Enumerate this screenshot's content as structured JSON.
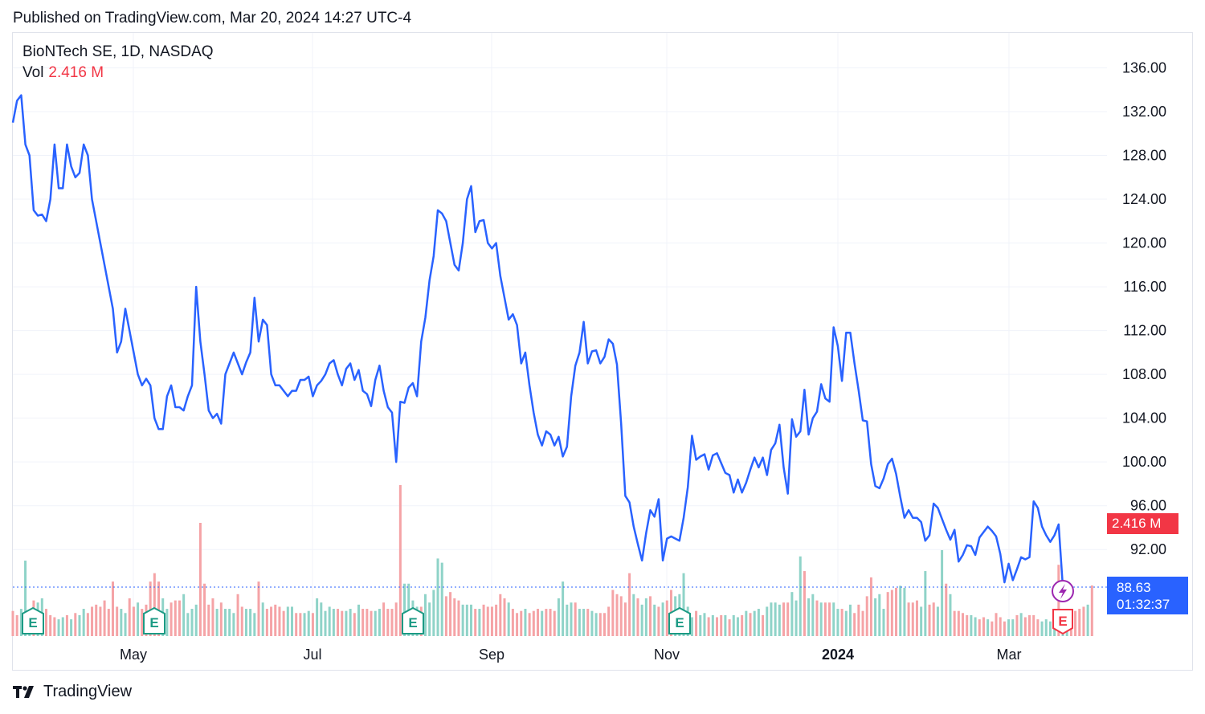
{
  "header": {
    "published": "Published on TradingView.com, Mar 20, 2024 14:27 UTC-4"
  },
  "legend": {
    "symbol": "BioNTech SE, 1D, NASDAQ",
    "vol_label": "Vol",
    "vol_value": "2.416 M"
  },
  "price_tag": {
    "value": "88.63",
    "countdown": "01:32:37"
  },
  "volume_tag": {
    "value": "2.416 M"
  },
  "footer": {
    "brand": "TradingView"
  },
  "colors": {
    "line": "#2962ff",
    "vol_up": "#8fd3c8",
    "vol_down": "#f5a3a6",
    "earnings": "#1b9a84",
    "earnings_next": "#f23645"
  },
  "chart_data": {
    "type": "line",
    "title": "BioNTech SE, 1D, NASDAQ",
    "x_range": [
      "2024-04-05",
      "2024-03-20"
    ],
    "ylim": [
      85,
      138
    ],
    "yticks": [
      "136.00",
      "132.00",
      "128.00",
      "124.00",
      "120.00",
      "116.00",
      "112.00",
      "108.00",
      "104.00",
      "100.00",
      "96.00",
      "92.00"
    ],
    "xticks": [
      "May",
      "Jul",
      "Sep",
      "Nov",
      "2024",
      "Mar"
    ],
    "series": [
      {
        "values": [
          131,
          133,
          133.5,
          129,
          128,
          123,
          122.5,
          122.6,
          122,
          124,
          129,
          125,
          125,
          129,
          127,
          126,
          126.4,
          129,
          128,
          124,
          122,
          120,
          118,
          116,
          114,
          110,
          111,
          114,
          112,
          110,
          108,
          107,
          107.6,
          107,
          104,
          103,
          103,
          106,
          107,
          105,
          105,
          104.7,
          106,
          107,
          116,
          111,
          108,
          104.7,
          104,
          104.4,
          103.5,
          108,
          109,
          110,
          109,
          108,
          109.1,
          110,
          115,
          111,
          113,
          112.5,
          108,
          107,
          107,
          106.5,
          106,
          106.5,
          106.5,
          107.5,
          107.5,
          107.8,
          106,
          107,
          107.4,
          108,
          109,
          109.3,
          108,
          107,
          108.5,
          109,
          107.5,
          108.4,
          106.5,
          106.2,
          105.1,
          107.5,
          108.8,
          106.5,
          105,
          104.5,
          100,
          105.5,
          105.4,
          106.8,
          107.2,
          106,
          111,
          113.2,
          116.6,
          118.8,
          123,
          122.7,
          122,
          120,
          118,
          117.5,
          120,
          124,
          125.2,
          121,
          122,
          122.1,
          120,
          119.5,
          120,
          117,
          115,
          113,
          113.5,
          112.5,
          109,
          110,
          107,
          104.5,
          102.5,
          101.5,
          102.8,
          102.5,
          101.5,
          102.3,
          100.5,
          101.4,
          106,
          108.8,
          110,
          112.8,
          109,
          110.1,
          110.2,
          109,
          109.6,
          111.2,
          110.8,
          108.9,
          103.5,
          96.9,
          96.3,
          94.1,
          92.5,
          91,
          93.5,
          95.6,
          95,
          96.6,
          91,
          93,
          93.2,
          93,
          92.8,
          94.9,
          97.7,
          102.4,
          100.2,
          100.5,
          100.7,
          99.3,
          100.6,
          100.8,
          99.9,
          99,
          98.8,
          97.2,
          98.4,
          97.2,
          98.1,
          99.3,
          100.4,
          99.5,
          100.4,
          98.8,
          101.1,
          101.7,
          103.4,
          99.5,
          97.1,
          103.9,
          102.3,
          102.8,
          106.6,
          102.5,
          104,
          104.6,
          107.1,
          105.8,
          105.5,
          112.3,
          110.6,
          107.4,
          111.8,
          111.8,
          109,
          106.5,
          103.8,
          103.7,
          99.8,
          97.8,
          97.6,
          98.5,
          99.8,
          100.3,
          98.9,
          96.8,
          94.9,
          95.6,
          94.9,
          94.9,
          94.5,
          92.8,
          93.3,
          96.2,
          95.8,
          94.8,
          93.8,
          92.9,
          93.8,
          90.9,
          91.5,
          92.4,
          92.3,
          91.5,
          93.1,
          93.6,
          94.1,
          93.7,
          93.2,
          91.6,
          89,
          90.7,
          89.2,
          90.2,
          91.3,
          91.1,
          91.3,
          96.4,
          95.8,
          94.1,
          93.3,
          92.7,
          93.3,
          94.3,
          88.63
        ]
      },
      {
        "name": "Vol",
        "unit": "M",
        "values": [
          1.2,
          1.0,
          1.3,
          3.6,
          1.2,
          1.7,
          1.6,
          1.8,
          1.3,
          1.0,
          0.9,
          0.8,
          0.9,
          1.0,
          0.8,
          1.1,
          1.0,
          1.3,
          1.1,
          1.4,
          1.5,
          1.4,
          1.7,
          1.3,
          2.6,
          1.4,
          1.3,
          1.1,
          1.8,
          1.4,
          1.6,
          1.3,
          1.5,
          2.6,
          3.0,
          2.6,
          1.8,
          1.3,
          1.6,
          1.7,
          1.7,
          2.0,
          1.1,
          1.3,
          1.5,
          5.4,
          2.5,
          1.5,
          1.8,
          1.3,
          1.6,
          1.3,
          1.3,
          1.1,
          2.0,
          1.4,
          1.3,
          1.3,
          1.1,
          2.6,
          1.6,
          1.3,
          1.4,
          1.5,
          1.4,
          1.2,
          1.4,
          1.4,
          1.1,
          1.1,
          1.1,
          1.2,
          1.1,
          1.8,
          1.6,
          1.2,
          1.4,
          1.3,
          1.3,
          1.2,
          1.2,
          1.3,
          1.1,
          1.5,
          1.3,
          1.3,
          1.2,
          1.2,
          1.3,
          1.6,
          1.3,
          1.3,
          1.6,
          7.2,
          2.5,
          2.5,
          1.7,
          1.4,
          1.4,
          2.0,
          1.6,
          2.2,
          3.7,
          3.5,
          1.9,
          2.1,
          1.8,
          1.7,
          1.5,
          1.5,
          1.5,
          1.3,
          1.3,
          1.5,
          1.4,
          1.4,
          1.5,
          2.0,
          1.8,
          1.6,
          1.3,
          1.1,
          1.2,
          1.3,
          1.1,
          1.2,
          1.3,
          1.2,
          1.3,
          1.3,
          1.2,
          1.8,
          2.6,
          1.5,
          1.6,
          1.6,
          1.3,
          1.3,
          1.3,
          1.2,
          1.1,
          1.1,
          1.1,
          1.4,
          2.2,
          2.0,
          1.9,
          1.6,
          3.0,
          2.0,
          1.8,
          1.5,
          1.8,
          1.9,
          1.5,
          1.4,
          1.6,
          1.7,
          2.2,
          1.9,
          2.0,
          3.0,
          1.4,
          0.9,
          1.2,
          1.0,
          1.1,
          0.9,
          1.0,
          0.9,
          1.0,
          1.0,
          0.8,
          1.0,
          0.9,
          1.0,
          1.2,
          1.1,
          1.2,
          1.3,
          1.0,
          1.4,
          1.6,
          1.6,
          1.5,
          1.6,
          1.6,
          2.1,
          1.7,
          3.8,
          3.1,
          1.8,
          2.0,
          1.7,
          1.6,
          1.6,
          1.6,
          1.6,
          1.3,
          1.3,
          1.2,
          1.5,
          1.1,
          1.5,
          1.2,
          1.9,
          2.8,
          1.8,
          2.0,
          1.3,
          2.1,
          2.2,
          2.3,
          2.4,
          2.3,
          1.6,
          1.6,
          1.7,
          1.4,
          3.1,
          1.5,
          1.6,
          1.4,
          4.1,
          2.5,
          2.0,
          1.2,
          1.2,
          1.1,
          1.0,
          1.0,
          0.9,
          0.8,
          0.9,
          0.8,
          0.7,
          1.1,
          0.9,
          0.7,
          0.8,
          0.8,
          1.0,
          1.1,
          0.9,
          1.0,
          1.0,
          0.8,
          0.7,
          0.8,
          0.7,
          1.0,
          3.4,
          0.7,
          0.9,
          1.0,
          1.2,
          1.3,
          1.4,
          1.5,
          2.416
        ]
      }
    ],
    "earnings_markers": [
      "E",
      "E",
      "E",
      "E",
      "E"
    ],
    "volume_up_flags": [
      0,
      0,
      1,
      1,
      1,
      0,
      1,
      1,
      0,
      0,
      0,
      1,
      1,
      0,
      1,
      0,
      1,
      1,
      0,
      0,
      0,
      0,
      0,
      0,
      0,
      0,
      1,
      1,
      0,
      0,
      1,
      0,
      0,
      0,
      0,
      0,
      1,
      1,
      0,
      0,
      0,
      1,
      1,
      1,
      1,
      0,
      0,
      0,
      0,
      1,
      0,
      1,
      1,
      1,
      0,
      0,
      1,
      1,
      1,
      0,
      1,
      0,
      0,
      0,
      0,
      0,
      1,
      1,
      0,
      0,
      1,
      1,
      0,
      1,
      1,
      1,
      1,
      1,
      0,
      0,
      1,
      1,
      0,
      1,
      0,
      0,
      0,
      1,
      1,
      0,
      0,
      0,
      0,
      0,
      1,
      1,
      1,
      1,
      0,
      1,
      1,
      1,
      1,
      1,
      0,
      0,
      0,
      0,
      1,
      1,
      1,
      0,
      1,
      0,
      0,
      0,
      0,
      0,
      0,
      1,
      0,
      0,
      0,
      1,
      0,
      0,
      0,
      1,
      0,
      0,
      0,
      1,
      1,
      1,
      1,
      0,
      1,
      1,
      0,
      1,
      1,
      0,
      0,
      0,
      0,
      0,
      0,
      0,
      0,
      1,
      0,
      1,
      1,
      0,
      1,
      0,
      1,
      0,
      0,
      1,
      1,
      1,
      1,
      1,
      0,
      1,
      1,
      0,
      1,
      0,
      0,
      1,
      0,
      1,
      1,
      0,
      1,
      0,
      1,
      1,
      0,
      1,
      1,
      1,
      1,
      0,
      0,
      1,
      1,
      1,
      0,
      1,
      1,
      0,
      1,
      0,
      0,
      1,
      1,
      0,
      1,
      1,
      0,
      0,
      0,
      0,
      0,
      1,
      1,
      1,
      0,
      0,
      0,
      1,
      1,
      0,
      0,
      0,
      1,
      1,
      0,
      0,
      1,
      1,
      0,
      1,
      0,
      0,
      0,
      0,
      1,
      1,
      0,
      0,
      1,
      0,
      0,
      0,
      0,
      1,
      1,
      0,
      1,
      0,
      0,
      0,
      0,
      1,
      1,
      1,
      1,
      0,
      1,
      1,
      0,
      0,
      0,
      0,
      1,
      0,
      0,
      1,
      0,
      1,
      1,
      1,
      0
    ]
  }
}
